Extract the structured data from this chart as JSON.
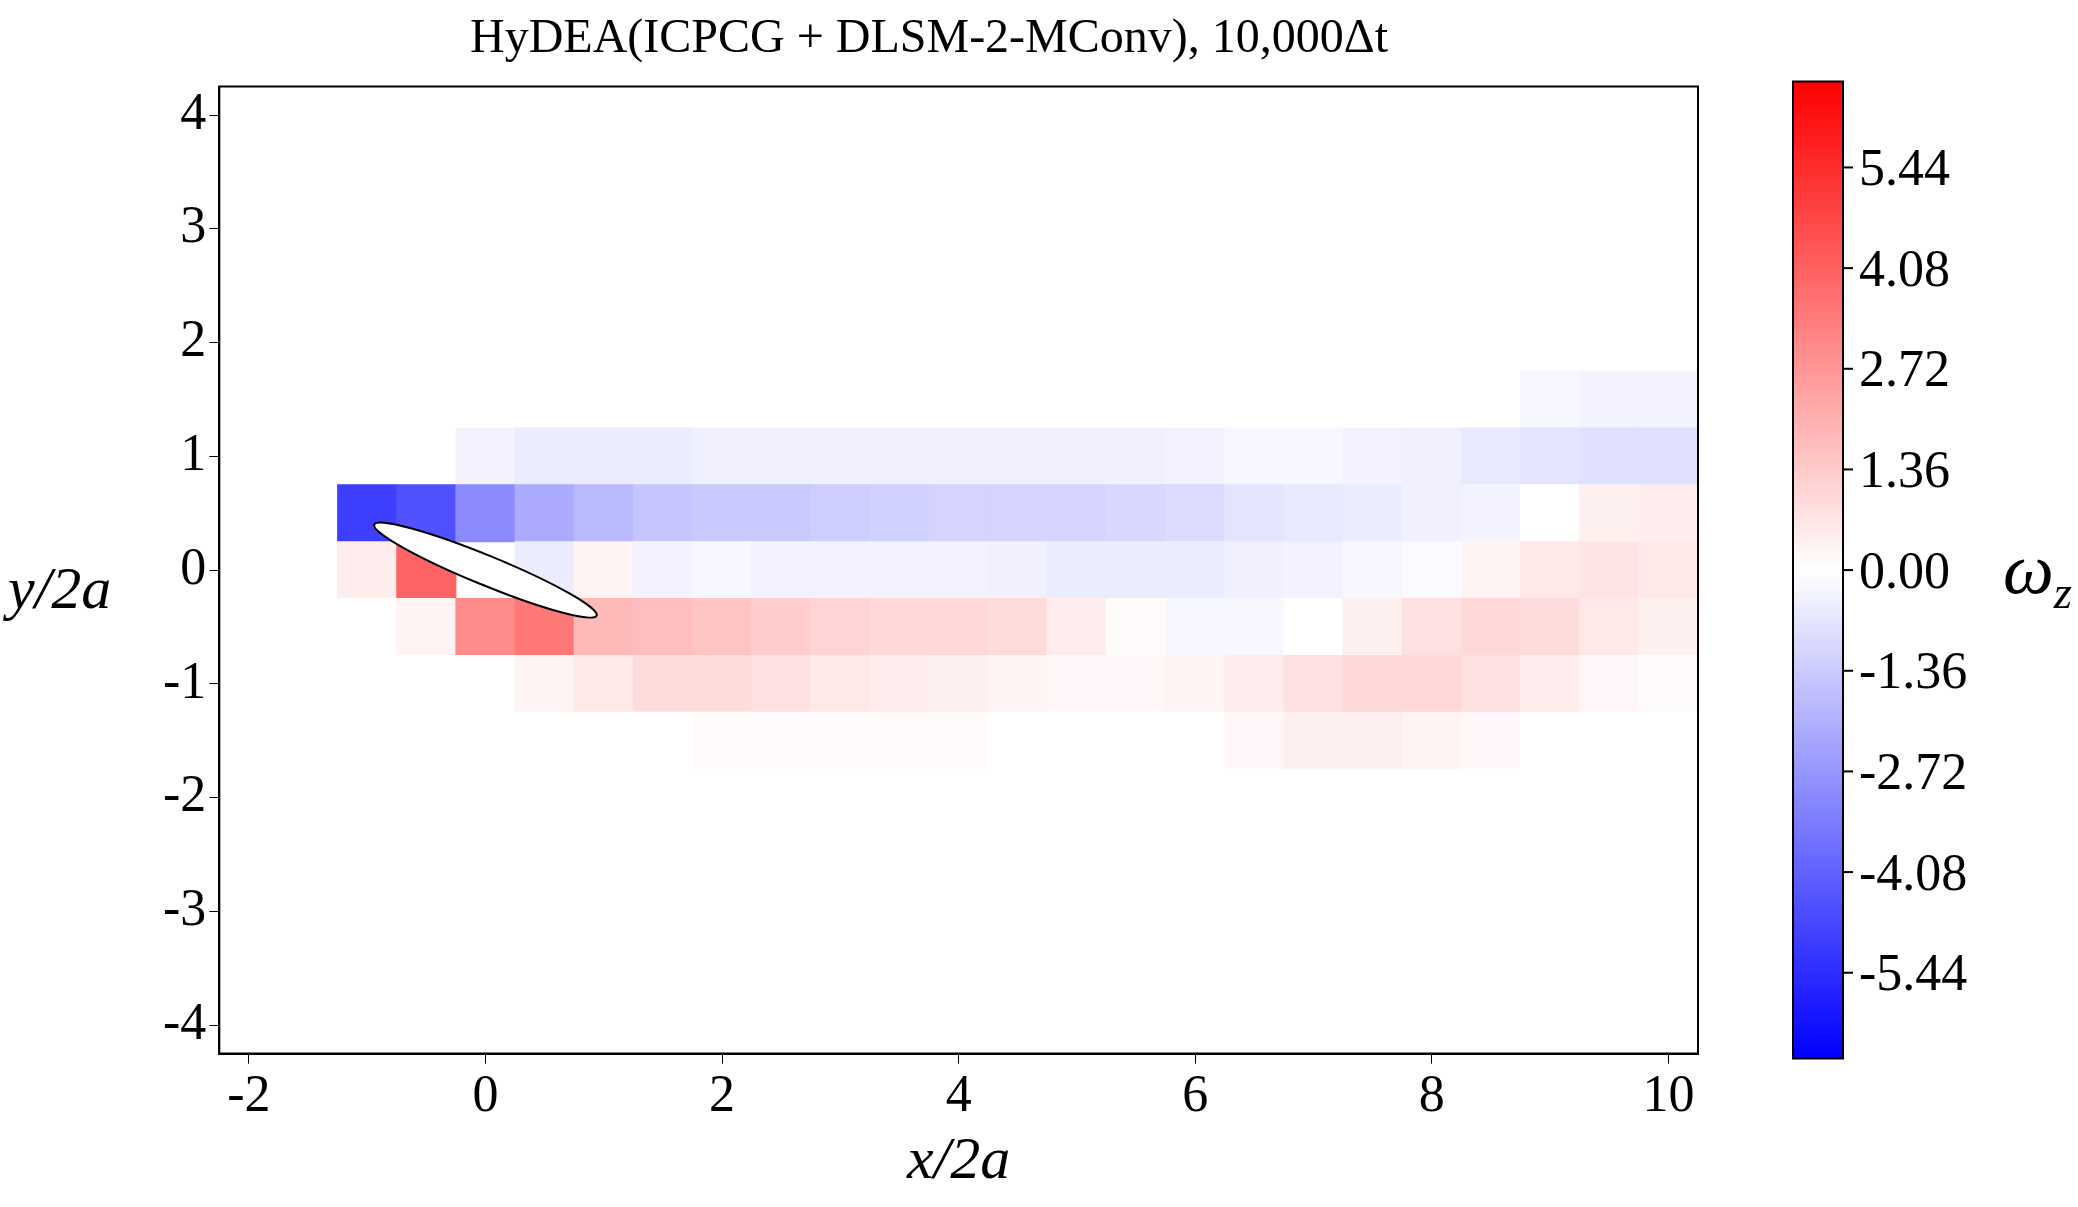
{
  "chart_data": {
    "type": "heatmap",
    "title": "HyDEA(ICPCG + DLSM-2-MConv), 10,000Δt",
    "xlabel": "x/2a",
    "ylabel": "y/2a",
    "clabel": "ω$_{z}$",
    "categories": [
      "-2",
      null,
      null,
      null,
      "0",
      null,
      null,
      null,
      "2",
      null,
      null,
      null,
      "4",
      null,
      null,
      null,
      "6",
      null,
      null,
      null,
      "8",
      null,
      null,
      null,
      "10"
    ],
    "y_categories": [
      "4",
      null,
      "3",
      null,
      "2",
      null,
      "1",
      null,
      "0",
      null,
      "-1",
      null,
      "-2",
      null,
      "-3",
      null,
      "-4"
    ],
    "cells": [
      [
        0,
        0,
        0,
        0,
        0,
        0,
        0,
        0,
        0,
        0,
        0,
        0,
        0,
        0,
        0,
        0,
        0,
        0,
        0,
        0,
        0,
        0,
        0,
        0,
        0
      ],
      [
        0,
        0,
        0,
        0,
        0,
        0,
        0,
        0,
        0,
        0,
        0,
        0,
        0,
        0,
        0,
        0,
        0,
        0,
        0,
        0,
        0,
        0,
        0,
        0,
        0
      ],
      [
        0,
        0,
        0,
        0,
        0,
        0,
        0,
        0,
        0,
        0,
        0,
        0,
        0,
        0,
        0,
        0,
        0,
        0,
        0,
        0,
        0,
        0,
        0,
        0,
        0
      ],
      [
        0,
        0,
        0,
        0,
        0,
        0,
        0,
        0,
        0,
        0,
        0,
        0,
        0,
        0,
        0,
        0,
        0,
        0,
        0,
        0,
        0,
        0,
        0,
        0,
        0
      ],
      [
        0,
        0,
        0,
        0,
        0,
        0,
        0,
        0,
        0,
        0,
        0,
        0,
        0,
        0,
        0,
        0,
        0,
        0,
        0,
        0,
        0,
        0,
        0,
        0,
        0
      ],
      [
        0,
        0,
        0,
        0,
        0,
        0,
        0,
        0,
        0,
        0,
        0,
        0,
        0,
        0,
        0,
        0,
        0,
        0,
        0,
        0,
        0,
        0,
        -0.2,
        -0.3,
        -0.3
      ],
      [
        0,
        0,
        0,
        0,
        -0.3,
        -0.5,
        -0.5,
        -0.5,
        -0.4,
        -0.4,
        -0.4,
        -0.4,
        -0.4,
        -0.4,
        -0.4,
        -0.4,
        -0.3,
        -0.2,
        -0.2,
        -0.3,
        -0.4,
        -0.6,
        -0.7,
        -0.8,
        -0.8
      ],
      [
        0,
        0,
        -5,
        -4.5,
        -3,
        -2.2,
        -1.8,
        -1.5,
        -1.4,
        -1.4,
        -1.3,
        -1.2,
        -1.1,
        -1.1,
        -1.1,
        -1,
        -0.9,
        -0.7,
        -0.6,
        -0.5,
        -0.4,
        -0.3,
        0,
        0.4,
        0.5
      ],
      [
        0,
        0,
        0.5,
        4,
        null,
        -0.5,
        0.3,
        -0.3,
        -0.2,
        -0.3,
        -0.3,
        -0.3,
        -0.3,
        -0.4,
        -0.5,
        -0.5,
        -0.5,
        -0.4,
        -0.3,
        -0.2,
        -0.1,
        0.3,
        0.6,
        0.7,
        0.6
      ],
      [
        0,
        0,
        0,
        0.3,
        3,
        3.5,
        1.8,
        1.7,
        1.5,
        1.3,
        1.1,
        1,
        1,
        0.9,
        0.5,
        0.1,
        -0.2,
        -0.2,
        0,
        0.4,
        0.8,
        1,
        0.9,
        0.6,
        0.4
      ],
      [
        0,
        0,
        0,
        0,
        0,
        0.3,
        0.6,
        0.9,
        0.9,
        0.8,
        0.6,
        0.5,
        0.4,
        0.3,
        0.2,
        0.2,
        0.3,
        0.5,
        0.8,
        1,
        1,
        0.8,
        0.5,
        0.2,
        0.1
      ],
      [
        0,
        0,
        0,
        0,
        0,
        0,
        0,
        0,
        0.1,
        0.1,
        0.1,
        0.1,
        0.1,
        0,
        0,
        0,
        0,
        0.2,
        0.4,
        0.4,
        0.3,
        0.2,
        0,
        0,
        0
      ],
      [
        0,
        0,
        0,
        0,
        0,
        0,
        0,
        0,
        0,
        0,
        0,
        0,
        0,
        0,
        0,
        0,
        0,
        0,
        0,
        0,
        0,
        0,
        0,
        0,
        0
      ],
      [
        0,
        0,
        0,
        0,
        0,
        0,
        0,
        0,
        0,
        0,
        0,
        0,
        0,
        0,
        0,
        0,
        0,
        0,
        0,
        0,
        0,
        0,
        0,
        0,
        0
      ],
      [
        0,
        0,
        0,
        0,
        0,
        0,
        0,
        0,
        0,
        0,
        0,
        0,
        0,
        0,
        0,
        0,
        0,
        0,
        0,
        0,
        0,
        0,
        0,
        0,
        0
      ],
      [
        0,
        0,
        0,
        0,
        0,
        0,
        0,
        0,
        0,
        0,
        0,
        0,
        0,
        0,
        0,
        0,
        0,
        0,
        0,
        0,
        0,
        0,
        0,
        0,
        0
      ],
      [
        0,
        0,
        0,
        0,
        0,
        0,
        0,
        0,
        0,
        0,
        0,
        0,
        0,
        0,
        0,
        0,
        0,
        0,
        0,
        0,
        0,
        0,
        0,
        0,
        0
      ]
    ],
    "clim": [
      -6.6,
      6.6
    ],
    "cticks": [
      -5.44,
      -4.08,
      -2.72,
      -1.36,
      {
        "value": 0,
        "label": "0.00"
      },
      1.36,
      2.72,
      4.08,
      5.44
    ]
  }
}
